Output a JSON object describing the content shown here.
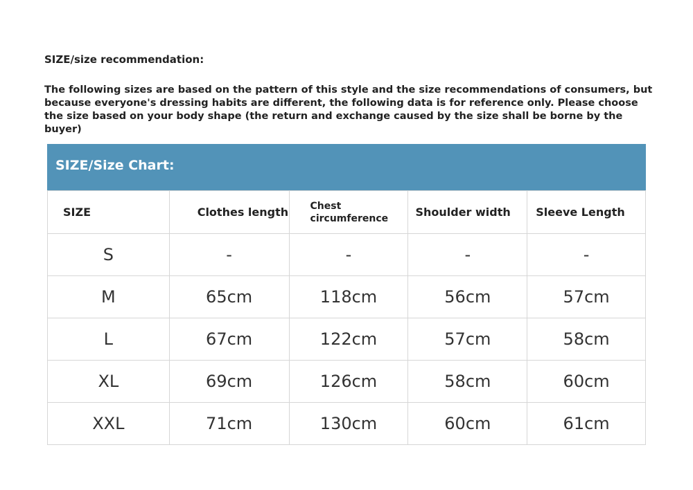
{
  "title": "SIZE/size recommendation:",
  "intro": "The following sizes are based on the pattern of this style and the size recommendations of consumers, but because everyone's dressing habits are different, the following data is for reference only. Please choose the size based on your body shape (the return and exchange caused by the size shall be borne by the buyer)",
  "chart_title": "SIZE/Size Chart:",
  "header_color": "#5293b8",
  "columns": [
    "SIZE",
    "Clothes length",
    "Chest circumference",
    "Shoulder width",
    "Sleeve Length"
  ],
  "rows": [
    [
      "S",
      "-",
      "-",
      "-",
      "-"
    ],
    [
      "M",
      "65cm",
      "118cm",
      "56cm",
      "57cm"
    ],
    [
      "L",
      "67cm",
      "122cm",
      "57cm",
      "58cm"
    ],
    [
      "XL",
      "69cm",
      "126cm",
      "58cm",
      "60cm"
    ],
    [
      "XXL",
      "71cm",
      "130cm",
      "60cm",
      "61cm"
    ]
  ]
}
